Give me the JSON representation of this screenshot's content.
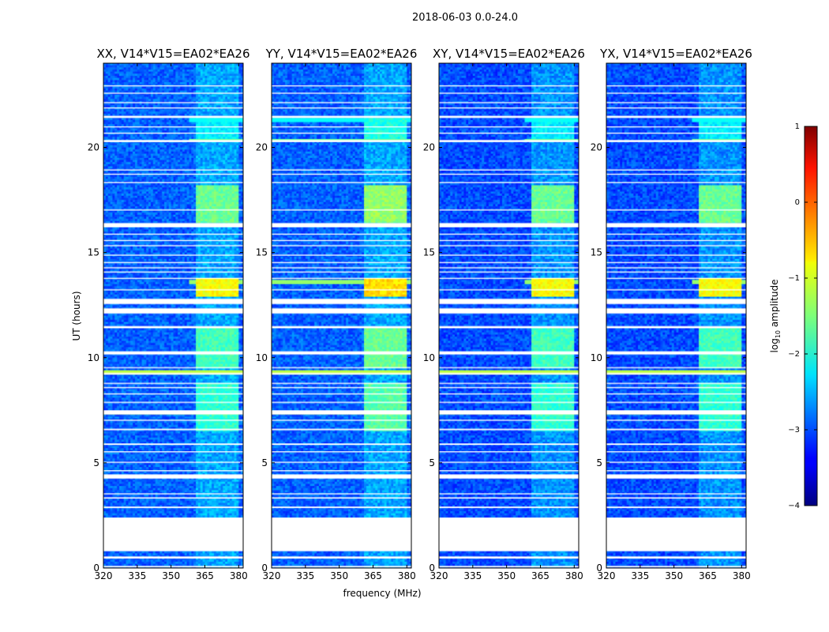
{
  "figure": {
    "suptitle": "2018-06-03 0.0-24.0"
  },
  "chart_data": {
    "type": "heatmap",
    "title": "2018-06-03 0.0-24.0",
    "xlabel": "frequency (MHz)",
    "ylabel": "UT (hours)",
    "xlim": [
      320,
      382
    ],
    "ylim": [
      0,
      24
    ],
    "xticks": [
      "320",
      "335",
      "350",
      "365",
      "380"
    ],
    "yticks": [
      "0",
      "5",
      "10",
      "15",
      "20"
    ],
    "colorbar": {
      "label": "log10 amplitude",
      "label_main": "log",
      "label_sub": "10",
      "label_rest": " amplitude",
      "range": [
        -4,
        1
      ],
      "ticks": [
        "1",
        "0",
        "−1",
        "−2",
        "−3",
        "−4"
      ],
      "colormap": "jet"
    },
    "panels": [
      {
        "title": "XX, V14*V15=EA02*EA26"
      },
      {
        "title": "YY, V14*V15=EA02*EA26"
      },
      {
        "title": "XY, V14*V15=EA02*EA26"
      },
      {
        "title": "YX, V14*V15=EA02*EA26"
      }
    ],
    "baseline_log_amplitude": -2.9,
    "signal_channels_mhz": [
      {
        "from": 361.5,
        "to": 366.0
      },
      {
        "from": 366.5,
        "to": 370.5
      },
      {
        "from": 371.0,
        "to": 375.0
      },
      {
        "from": 375.5,
        "to": 379.5
      }
    ],
    "flagged_ut_hours": [
      [
        0.03,
        0.1
      ],
      [
        0.45,
        0.55
      ],
      [
        0.8,
        2.4
      ],
      [
        2.85,
        2.92
      ],
      [
        3.3,
        3.36
      ],
      [
        3.5,
        3.55
      ],
      [
        4.25,
        4.45
      ],
      [
        4.6,
        4.65
      ],
      [
        5.0,
        5.05
      ],
      [
        5.5,
        5.55
      ],
      [
        5.85,
        5.92
      ],
      [
        6.55,
        6.62
      ],
      [
        7.0,
        7.05
      ],
      [
        7.3,
        7.5
      ],
      [
        7.85,
        7.9
      ],
      [
        8.25,
        8.3
      ],
      [
        8.55,
        8.6
      ],
      [
        8.75,
        8.8
      ],
      [
        9.2,
        9.28
      ],
      [
        9.5,
        9.55
      ],
      [
        10.15,
        10.3
      ],
      [
        11.4,
        11.5
      ],
      [
        12.1,
        12.35
      ],
      [
        12.55,
        12.8
      ],
      [
        13.2,
        13.25
      ],
      [
        13.75,
        13.8
      ],
      [
        14.05,
        14.1
      ],
      [
        14.25,
        14.3
      ],
      [
        14.5,
        14.55
      ],
      [
        14.85,
        14.9
      ],
      [
        15.3,
        15.35
      ],
      [
        15.55,
        15.6
      ],
      [
        15.85,
        15.9
      ],
      [
        16.2,
        16.4
      ],
      [
        17.0,
        17.05
      ],
      [
        18.3,
        18.35
      ],
      [
        18.7,
        18.75
      ],
      [
        18.9,
        18.95
      ],
      [
        20.25,
        20.35
      ],
      [
        20.65,
        20.7
      ],
      [
        20.95,
        21.0
      ],
      [
        21.4,
        21.5
      ],
      [
        21.85,
        21.9
      ],
      [
        22.1,
        22.15
      ],
      [
        22.55,
        22.6
      ],
      [
        22.9,
        22.95
      ]
    ],
    "rfi_events": [
      {
        "from": 16.4,
        "to": 18.2,
        "level": -1.6
      },
      {
        "from": 12.9,
        "to": 13.8,
        "level": -0.9
      },
      {
        "from": 9.5,
        "to": 11.4,
        "level": -1.8
      },
      {
        "from": 6.5,
        "to": 8.8,
        "level": -1.9
      },
      {
        "from": 20.3,
        "to": 21.4,
        "level": -2.2
      }
    ],
    "broadband_lines": [
      {
        "ut": 21.3,
        "level": -2.1
      },
      {
        "ut": 20.35,
        "level": -1.6
      },
      {
        "ut": 13.6,
        "level": -1.4
      },
      {
        "ut": 7.4,
        "level": -1.0
      },
      {
        "ut": 9.3,
        "level": -1.2
      }
    ]
  }
}
